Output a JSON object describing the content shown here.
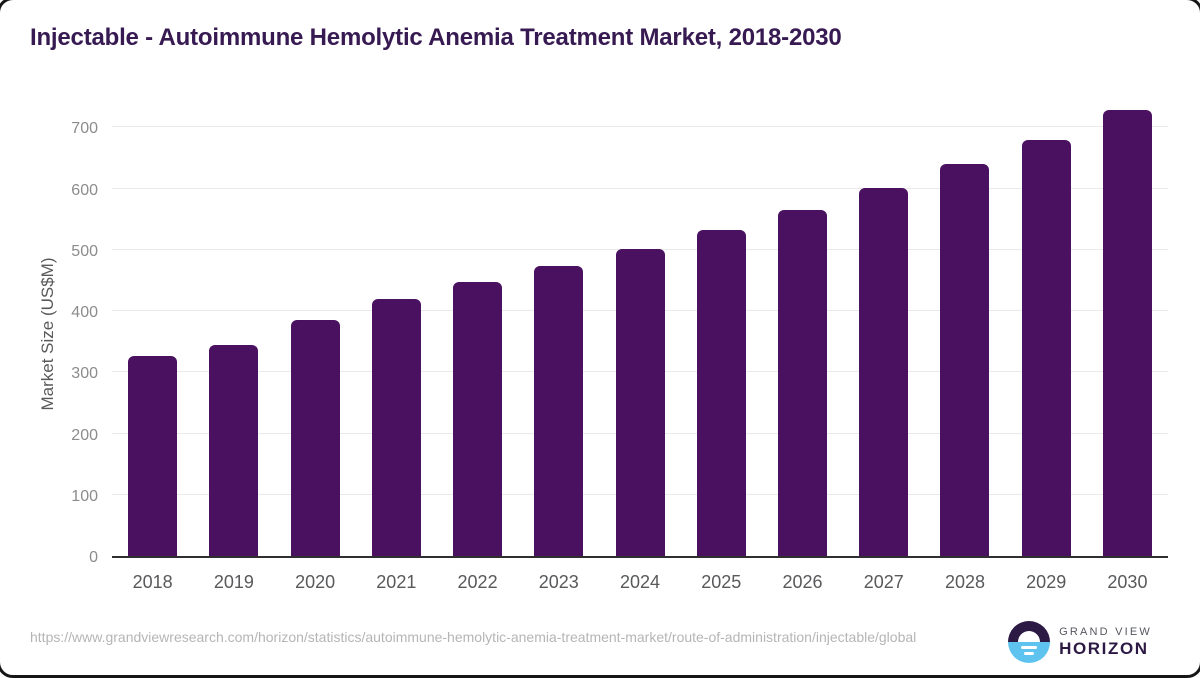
{
  "title": "Injectable - Autoimmune Hemolytic Anemia Treatment Market, 2018-2030",
  "source_url": "https://www.grandviewresearch.com/horizon/statistics/autoimmune-hemolytic-anemia-treatment-market/route-of-administration/injectable/global",
  "branding": {
    "name_top": "GRAND VIEW",
    "name_bottom": "HORIZON",
    "icon": "horizon-sun-icon"
  },
  "colors": {
    "bar": "#4a1160",
    "title": "#371a52",
    "logo_dark": "#2c1a45",
    "logo_blue": "#5fc3f0"
  },
  "chart_data": {
    "type": "bar",
    "categories": [
      "2018",
      "2019",
      "2020",
      "2021",
      "2022",
      "2023",
      "2024",
      "2025",
      "2026",
      "2027",
      "2028",
      "2029",
      "2030"
    ],
    "values": [
      326,
      345,
      385,
      419,
      448,
      473,
      501,
      532,
      565,
      601,
      640,
      680,
      728
    ],
    "title": "Injectable - Autoimmune Hemolytic Anemia Treatment Market, 2018-2030",
    "xlabel": "",
    "ylabel": "Market Size (US$M)",
    "ylim": [
      0,
      735
    ],
    "yticks": [
      0,
      100,
      200,
      300,
      400,
      500,
      600,
      700
    ],
    "grid": true,
    "legend": false,
    "bar_color": "#4a1160"
  }
}
